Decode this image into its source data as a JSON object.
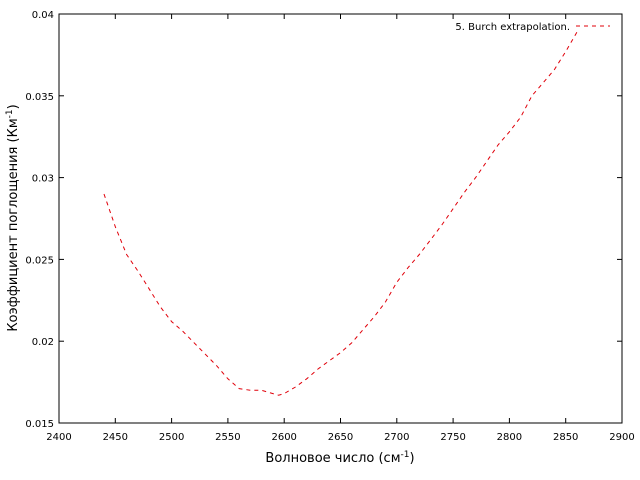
{
  "chart_data": {
    "type": "line",
    "title": "",
    "xlabel": "Волновое число (см",
    "xlabel_sup": "-1",
    "xlabel_end": ")",
    "ylabel": "Коэффициент поглощения (Км",
    "ylabel_sup": "-1",
    "ylabel_end": ")",
    "xlim": [
      2400,
      2900
    ],
    "ylim": [
      0.015,
      0.04
    ],
    "xticks": [
      2400,
      2450,
      2500,
      2550,
      2600,
      2650,
      2700,
      2750,
      2800,
      2850,
      2900
    ],
    "xtick_labels": [
      "2400",
      "2450",
      "2500",
      "2550",
      "2600",
      "2650",
      "2700",
      "2750",
      "2800",
      "2850",
      "2900"
    ],
    "yticks": [
      0.015,
      0.02,
      0.025,
      0.03,
      0.035,
      0.04
    ],
    "ytick_labels": [
      "0.015",
      "0.02",
      "0.025",
      "0.03",
      "0.035",
      "0.04"
    ],
    "grid": false,
    "legend_position": "top-right",
    "series": [
      {
        "name": "5. Burch extrapolation.",
        "color": "#e0000a",
        "line_style": "dashed",
        "x": [
          2440,
          2450,
          2460,
          2470,
          2480,
          2490,
          2500,
          2510,
          2520,
          2530,
          2540,
          2550,
          2560,
          2570,
          2580,
          2590,
          2595,
          2600,
          2610,
          2620,
          2630,
          2640,
          2650,
          2660,
          2670,
          2680,
          2690,
          2700,
          2710,
          2720,
          2730,
          2740,
          2750,
          2760,
          2770,
          2780,
          2790,
          2800,
          2810,
          2820,
          2830,
          2840,
          2850,
          2860
        ],
        "y": [
          0.029,
          0.027,
          0.0253,
          0.0243,
          0.0232,
          0.0221,
          0.0212,
          0.0206,
          0.0199,
          0.0192,
          0.0185,
          0.0177,
          0.0171,
          0.017,
          0.017,
          0.0168,
          0.0167,
          0.0168,
          0.0172,
          0.0177,
          0.0183,
          0.0188,
          0.0193,
          0.0199,
          0.0207,
          0.0215,
          0.0224,
          0.0236,
          0.0245,
          0.0253,
          0.0262,
          0.0271,
          0.0281,
          0.0291,
          0.03,
          0.031,
          0.032,
          0.0328,
          0.0337,
          0.035,
          0.0358,
          0.0366,
          0.0377,
          0.0389
        ]
      }
    ]
  }
}
